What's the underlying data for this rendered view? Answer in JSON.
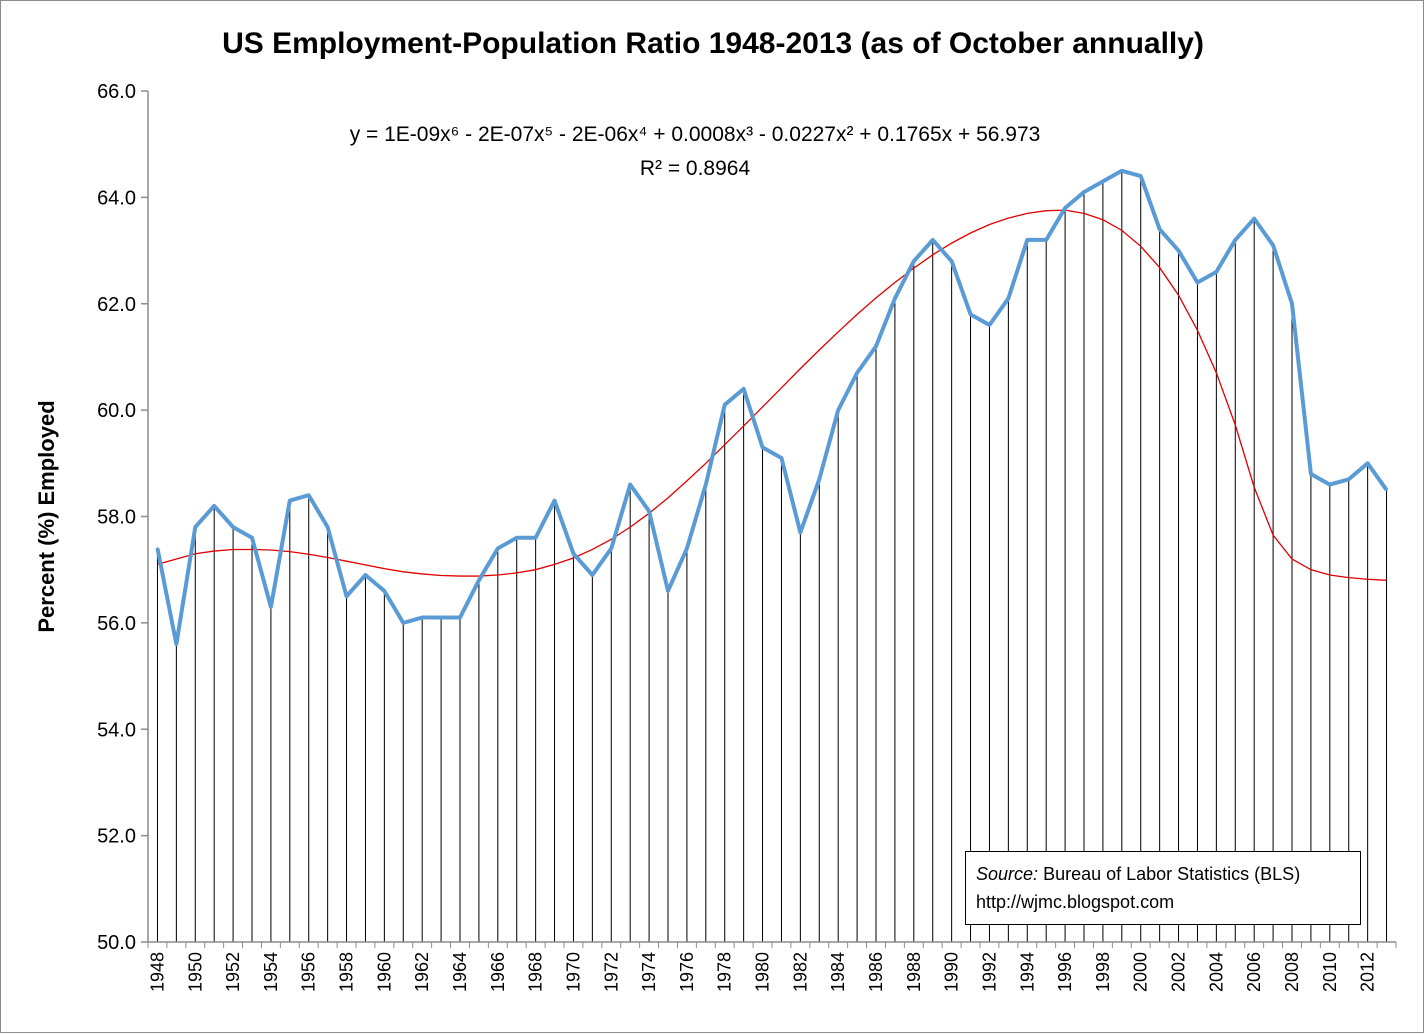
{
  "chart_data": {
    "type": "line",
    "title": "US Employment-Population Ratio 1948-2013 (as of October annually)",
    "xlabel": "",
    "ylabel": "Percent (%) Employed",
    "ylim": [
      50,
      66
    ],
    "yticks": [
      "50.0",
      "52.0",
      "54.0",
      "56.0",
      "58.0",
      "60.0",
      "62.0",
      "64.0",
      "66.0"
    ],
    "xticks": [
      "1948",
      "1950",
      "1952",
      "1954",
      "1956",
      "1958",
      "1960",
      "1962",
      "1964",
      "1966",
      "1968",
      "1970",
      "1972",
      "1974",
      "1976",
      "1978",
      "1980",
      "1982",
      "1984",
      "1986",
      "1988",
      "1990",
      "1992",
      "1994",
      "1996",
      "1998",
      "2000",
      "2002",
      "2004",
      "2006",
      "2008",
      "2010",
      "2012"
    ],
    "x": [
      1948,
      1949,
      1950,
      1951,
      1952,
      1953,
      1954,
      1955,
      1956,
      1957,
      1958,
      1959,
      1960,
      1961,
      1962,
      1963,
      1964,
      1965,
      1966,
      1967,
      1968,
      1969,
      1970,
      1971,
      1972,
      1973,
      1974,
      1975,
      1976,
      1977,
      1978,
      1979,
      1980,
      1981,
      1982,
      1983,
      1984,
      1985,
      1986,
      1987,
      1988,
      1989,
      1990,
      1991,
      1992,
      1993,
      1994,
      1995,
      1996,
      1997,
      1998,
      1999,
      2000,
      2001,
      2002,
      2003,
      2004,
      2005,
      2006,
      2007,
      2008,
      2009,
      2010,
      2011,
      2012,
      2013
    ],
    "series": [
      {
        "values": [
          57.4,
          55.6,
          57.8,
          58.2,
          57.8,
          57.6,
          56.3,
          58.3,
          58.4,
          57.8,
          56.5,
          56.9,
          56.6,
          56.0,
          56.1,
          56.1,
          56.1,
          56.8,
          57.4,
          57.6,
          57.6,
          58.3,
          57.3,
          56.9,
          57.4,
          58.6,
          58.1,
          56.6,
          57.4,
          58.6,
          60.1,
          60.4,
          59.3,
          59.1,
          57.7,
          58.7,
          60.0,
          60.7,
          61.2,
          62.1,
          62.8,
          63.2,
          62.8,
          61.8,
          61.6,
          62.1,
          63.2,
          63.2,
          63.8,
          64.1,
          64.3,
          64.5,
          64.4,
          63.4,
          63.0,
          62.4,
          62.6,
          63.2,
          63.6,
          63.1,
          62.0,
          58.8,
          58.6,
          58.7,
          59.0,
          58.5
        ],
        "color": "#5b9bd5"
      }
    ],
    "trendline": {
      "type": "polynomial",
      "order": 6,
      "color": "#e00000",
      "equation": "y = 1E-09x⁶ - 2E-07x⁵ - 2E-06x⁴ + 0.0008x³ - 0.0227x² + 0.1765x + 56.973",
      "r_squared_label": "R² = 0.8964",
      "values": [
        57.1,
        57.2,
        57.3,
        57.35,
        57.38,
        57.38,
        57.37,
        57.34,
        57.29,
        57.23,
        57.16,
        57.09,
        57.02,
        56.96,
        56.92,
        56.89,
        56.88,
        56.88,
        56.9,
        56.94,
        57.0,
        57.1,
        57.22,
        57.38,
        57.57,
        57.8,
        58.06,
        58.35,
        58.67,
        59.0,
        59.35,
        59.7,
        60.06,
        60.42,
        60.78,
        61.13,
        61.47,
        61.8,
        62.11,
        62.4,
        62.67,
        62.92,
        63.14,
        63.33,
        63.49,
        63.61,
        63.7,
        63.75,
        63.76,
        63.7,
        63.58,
        63.38,
        63.08,
        62.68,
        62.16,
        61.5,
        60.7,
        59.72,
        58.55,
        57.65,
        57.2,
        57.0,
        56.9,
        56.85,
        56.82,
        56.8
      ]
    },
    "drop_lines": true,
    "grid": false,
    "legend": "none",
    "source_label": "Source:",
    "source_text": "Bureau of Labor Statistics (BLS)",
    "source_url": "http://wjmc.blogspot.com"
  }
}
